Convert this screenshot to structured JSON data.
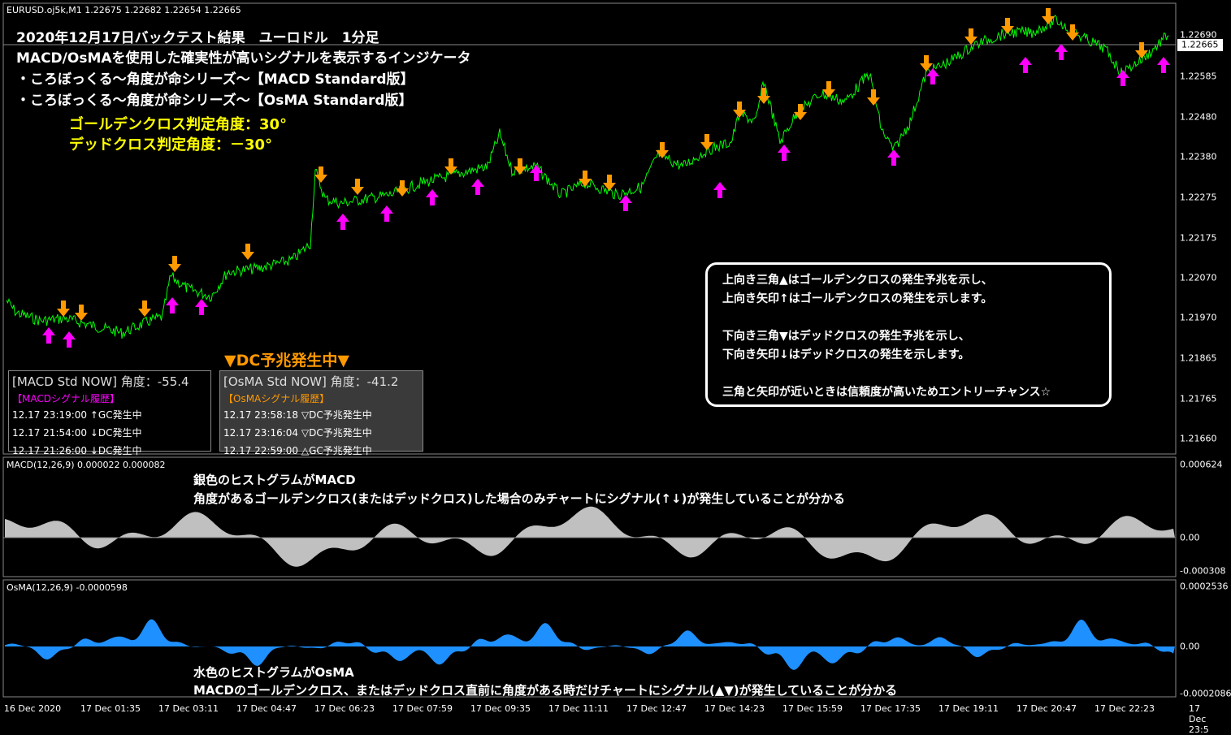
{
  "header": "EURUSD.oj5k,M1  1.22675 1.22682 1.22654 1.22665",
  "overlay": {
    "title": "2020年12月17日バックテスト結果　ユーロドル　1分足",
    "lines": [
      "MACD/OsMAを使用した確実性が高いシグナルを表示するインジケータ",
      "・ころぼっくる～角度が命シリーズ～【MACD Standard版】",
      "・ころぼっくる～角度が命シリーズ～【OsMA Standard版】"
    ],
    "gc_angle": "ゴールデンクロス判定角度：30°",
    "dc_angle": "デッドクロス判定角度：－30°"
  },
  "dc_notice": "▼DC予兆発生中▼",
  "panels": [
    {
      "title": "[MACD Std NOW] 角度：-55.4",
      "subtitle": "【MACDシグナル履歴】",
      "rows": [
        "12.17 23:19:00 ↑GC発生中",
        "12.17 21:54:00 ↓DC発生中",
        "12.17 21:26:00 ↓DC発生中"
      ]
    },
    {
      "title": "[OsMA Std NOW] 角度：-41.2",
      "subtitle": "【OsMAシグナル履歴】",
      "rows": [
        "12.17 23:58:18 ▽DC予兆発生中",
        "12.17 23:16:04 ▽DC予兆発生中",
        "12.17 22:59:00 △GC予兆発生中"
      ]
    }
  ],
  "legend_box": {
    "lines": [
      "上向き三角▲はゴールデンクロスの発生予兆を示し、",
      "上向き矢印↑はゴールデンクロスの発生を示します。",
      "下向き三角▼はデッドクロスの発生予兆を示し、",
      "下向き矢印↓はデッドクロスの発生を示します。",
      "三角と矢印が近いときは信頼度が高いためエントリーチャンス☆"
    ]
  },
  "price_axis": [
    "1.22690",
    "1.22585",
    "1.22480",
    "1.22380",
    "1.22275",
    "1.22175",
    "1.22070",
    "1.21970",
    "1.21865",
    "1.21765",
    "1.21660"
  ],
  "current_price": "1.22665",
  "macd": {
    "label": "MACD(12,26,9) 0.000022 0.000082",
    "axis": [
      "0.000624",
      "0.00",
      "-0.000308"
    ],
    "note": [
      "銀色のヒストグラムがMACD",
      "角度があるゴールデンクロス(またはデッドクロス)した場合のみチャートにシグナル(↑↓)が発生していることが分かる"
    ]
  },
  "osma": {
    "label": "OsMA(12,26,9) -0.0000598",
    "axis": [
      "0.0002536",
      "0.00",
      "-0.0002086"
    ],
    "note": [
      "水色のヒストグラムがOsMA",
      "MACDのゴールデンクロス、またはデッドクロス直前に角度がある時だけチャートにシグナル(▲▼)が発生していることが分かる"
    ]
  },
  "time_axis": [
    "16 Dec 2020",
    "17 Dec 01:35",
    "17 Dec 03:11",
    "17 Dec 04:47",
    "17 Dec 06:23",
    "17 Dec 07:59",
    "17 Dec 09:35",
    "17 Dec 11:11",
    "17 Dec 12:47",
    "17 Dec 14:23",
    "17 Dec 15:59",
    "17 Dec 17:35",
    "17 Dec 19:11",
    "17 Dec 20:47",
    "17 Dec 22:23",
    "17 Dec 23:5"
  ]
}
